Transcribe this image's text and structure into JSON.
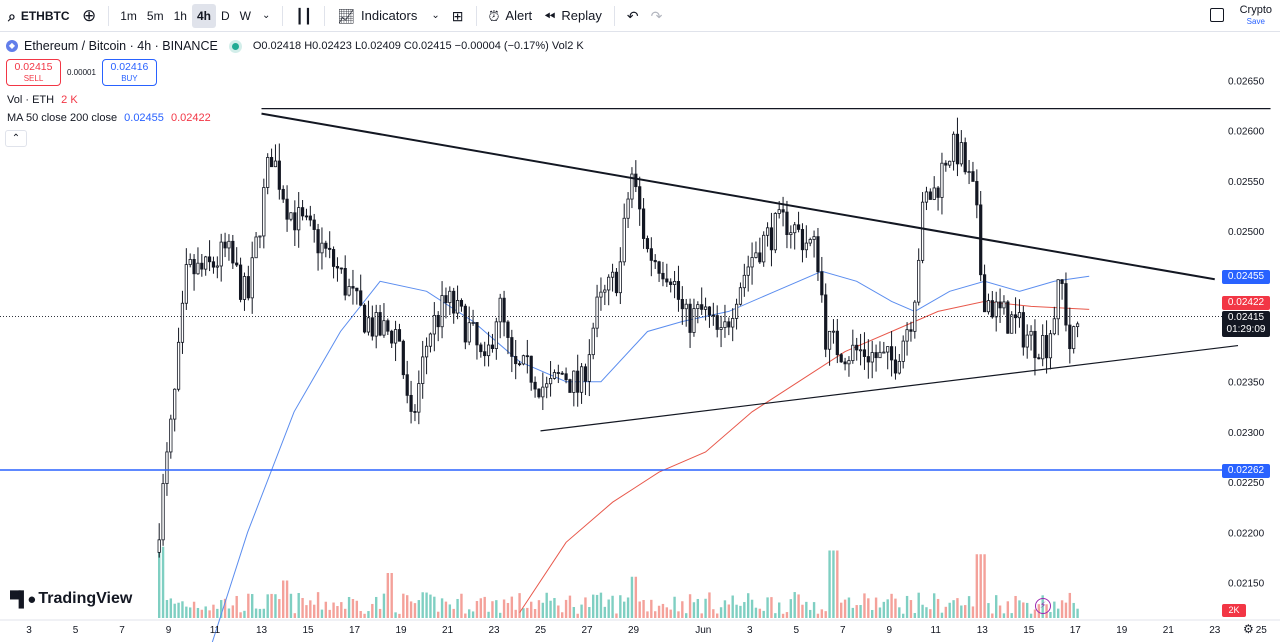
{
  "toolbar": {
    "symbol": "ETHBTC",
    "intervals": [
      "1m",
      "5m",
      "1h",
      "4h",
      "D",
      "W"
    ],
    "active_interval": "4h",
    "indicators_label": "Indicators",
    "alert_label": "Alert",
    "replay_label": "Replay",
    "crypto_label": "Crypto",
    "save_label": "Save"
  },
  "legend": {
    "title": "Ethereum / Bitcoin · 4h · BINANCE",
    "ohlc": "O0.02418 H0.02423 L0.02409 C0.02415 −0.00004 (−0.17%) Vol2 K",
    "sell_price": "0.02415",
    "sell_label": "SELL",
    "spread": "0.00001",
    "buy_price": "0.02416",
    "buy_label": "BUY",
    "vol_name": "Vol · ETH",
    "vol_value": "2 K",
    "ma_name": "MA 50 close 200 close",
    "ma50_value": "0.02455",
    "ma200_value": "0.02422"
  },
  "price_labels": {
    "ma50": "0.02455",
    "ma200": "0.02422",
    "current": "0.02415",
    "countdown": "01:29:09",
    "hline": "0.02262",
    "volume": "2K"
  },
  "branding": {
    "logo_text": "TradingView"
  },
  "colors": {
    "up": "#22ab94",
    "down": "#131722",
    "ma50": "#5b8def",
    "ma200": "#e8584b",
    "hline": "#2962ff",
    "vol_up": "#7fcfc2",
    "vol_down": "#f4a19a"
  },
  "chart_data": {
    "type": "candlestick",
    "symbol": "ETHBTC",
    "interval": "4h",
    "y_axis_ticks": [
      0.0265,
      0.026,
      0.0255,
      0.025,
      0.0245,
      0.024,
      0.0235,
      0.023,
      0.0225,
      0.022,
      0.0215
    ],
    "y_axis_tick_labels": [
      "0.02650",
      "0.02600",
      "0.02550",
      "0.02500",
      "",
      "",
      "0.02350",
      "0.02300",
      "0.02250",
      "0.02200",
      "0.02150"
    ],
    "x_axis_ticks": [
      {
        "day": 3,
        "label": "3"
      },
      {
        "day": 5,
        "label": "5"
      },
      {
        "day": 7,
        "label": "7"
      },
      {
        "day": 9,
        "label": "9"
      },
      {
        "day": 11,
        "label": "11"
      },
      {
        "day": 13,
        "label": "13"
      },
      {
        "day": 15,
        "label": "15"
      },
      {
        "day": 17,
        "label": "17"
      },
      {
        "day": 19,
        "label": "19"
      },
      {
        "day": 21,
        "label": "21"
      },
      {
        "day": 23,
        "label": "23"
      },
      {
        "day": 25,
        "label": "25"
      },
      {
        "day": 27,
        "label": "27"
      },
      {
        "day": 29,
        "label": "29"
      },
      {
        "day": 32,
        "label": "Jun"
      },
      {
        "day": 34,
        "label": "3"
      },
      {
        "day": 36,
        "label": "5"
      },
      {
        "day": 38,
        "label": "7"
      },
      {
        "day": 40,
        "label": "9"
      },
      {
        "day": 42,
        "label": "11"
      },
      {
        "day": 44,
        "label": "13"
      },
      {
        "day": 46,
        "label": "15"
      },
      {
        "day": 48,
        "label": "17"
      },
      {
        "day": 50,
        "label": "19"
      },
      {
        "day": 52,
        "label": "21"
      },
      {
        "day": 54,
        "label": "23"
      },
      {
        "day": 56,
        "label": "25"
      }
    ],
    "price_path": [
      [
        8.6,
        0.0221
      ],
      [
        9.2,
        0.0232
      ],
      [
        9.8,
        0.0246
      ],
      [
        10.6,
        0.0246
      ],
      [
        11.5,
        0.0248
      ],
      [
        12.4,
        0.0243
      ],
      [
        13.4,
        0.0258
      ],
      [
        14.2,
        0.0252
      ],
      [
        15.4,
        0.0249
      ],
      [
        16.3,
        0.0246
      ],
      [
        17.2,
        0.0242
      ],
      [
        18.0,
        0.024
      ],
      [
        18.9,
        0.024
      ],
      [
        19.4,
        0.023
      ],
      [
        20.2,
        0.024
      ],
      [
        21.0,
        0.0243
      ],
      [
        22.0,
        0.024
      ],
      [
        22.6,
        0.0236
      ],
      [
        23.2,
        0.0243
      ],
      [
        23.8,
        0.0236
      ],
      [
        24.6,
        0.0236
      ],
      [
        25.3,
        0.0234
      ],
      [
        26.0,
        0.0236
      ],
      [
        26.7,
        0.0234
      ],
      [
        27.4,
        0.0242
      ],
      [
        28.4,
        0.0246
      ],
      [
        28.9,
        0.0256
      ],
      [
        29.6,
        0.0248
      ],
      [
        30.6,
        0.0246
      ],
      [
        31.2,
        0.0241
      ],
      [
        32.0,
        0.0242
      ],
      [
        32.8,
        0.0239
      ],
      [
        33.4,
        0.0244
      ],
      [
        34.2,
        0.0248
      ],
      [
        35.0,
        0.025
      ],
      [
        35.6,
        0.0251
      ],
      [
        36.4,
        0.0249
      ],
      [
        36.9,
        0.0248
      ],
      [
        37.3,
        0.0239
      ],
      [
        38.2,
        0.0238
      ],
      [
        39.0,
        0.0238
      ],
      [
        39.8,
        0.0237
      ],
      [
        40.2,
        0.0237
      ],
      [
        41.0,
        0.0242
      ],
      [
        41.5,
        0.0253
      ],
      [
        42.0,
        0.0254
      ],
      [
        42.5,
        0.0258
      ],
      [
        43.0,
        0.0258
      ],
      [
        43.7,
        0.0253
      ],
      [
        44.0,
        0.0244
      ],
      [
        44.6,
        0.0242
      ],
      [
        45.3,
        0.0241
      ],
      [
        46.2,
        0.0239
      ],
      [
        46.8,
        0.0239
      ],
      [
        47.4,
        0.0245
      ],
      [
        47.8,
        0.0238
      ],
      [
        48.2,
        0.02415
      ]
    ],
    "ma50": [
      [
        10.6,
        0.0207
      ],
      [
        12.4,
        0.022
      ],
      [
        14.4,
        0.0232
      ],
      [
        16.4,
        0.024
      ],
      [
        18.1,
        0.0245
      ],
      [
        20.1,
        0.0244
      ],
      [
        22.1,
        0.0241
      ],
      [
        24.1,
        0.0237
      ],
      [
        26.1,
        0.0235
      ],
      [
        27.6,
        0.0235
      ],
      [
        29.6,
        0.024
      ],
      [
        31.1,
        0.0241
      ],
      [
        33.1,
        0.0242
      ],
      [
        35.1,
        0.0244
      ],
      [
        37.1,
        0.0246
      ],
      [
        38.6,
        0.0245
      ],
      [
        40.1,
        0.0243
      ],
      [
        41.1,
        0.0242
      ],
      [
        42.6,
        0.0244
      ],
      [
        44.1,
        0.0245
      ],
      [
        45.6,
        0.0244
      ],
      [
        47.1,
        0.0245
      ],
      [
        48.6,
        0.02455
      ]
    ],
    "ma200": [
      [
        24.1,
        0.0212
      ],
      [
        26.1,
        0.0219
      ],
      [
        28.1,
        0.0223
      ],
      [
        30.1,
        0.0226
      ],
      [
        32.1,
        0.0228
      ],
      [
        34.1,
        0.0232
      ],
      [
        36.1,
        0.0235
      ],
      [
        38.1,
        0.0238
      ],
      [
        40.1,
        0.024
      ],
      [
        42.1,
        0.0242
      ],
      [
        44.1,
        0.0243
      ],
      [
        46.1,
        0.02425
      ],
      [
        48.6,
        0.02422
      ]
    ],
    "trendlines": [
      {
        "name": "resistance",
        "from": [
          13.0,
          0.02617
        ],
        "to": [
          54.0,
          0.02452
        ]
      },
      {
        "name": "support",
        "from": [
          25.0,
          0.02301
        ],
        "to": [
          55.0,
          0.02386
        ]
      },
      {
        "name": "top-horizontal",
        "from": [
          13.0,
          0.02622
        ],
        "to": [
          56.4,
          0.02622
        ]
      }
    ],
    "horizontal_line": 0.02262,
    "current_price": 0.02415,
    "volume_spikes": [
      [
        8.7,
        95
      ],
      [
        18.5,
        60
      ],
      [
        37.6,
        90
      ],
      [
        43.9,
        85
      ],
      [
        29.0,
        55
      ],
      [
        14.0,
        50
      ]
    ]
  }
}
